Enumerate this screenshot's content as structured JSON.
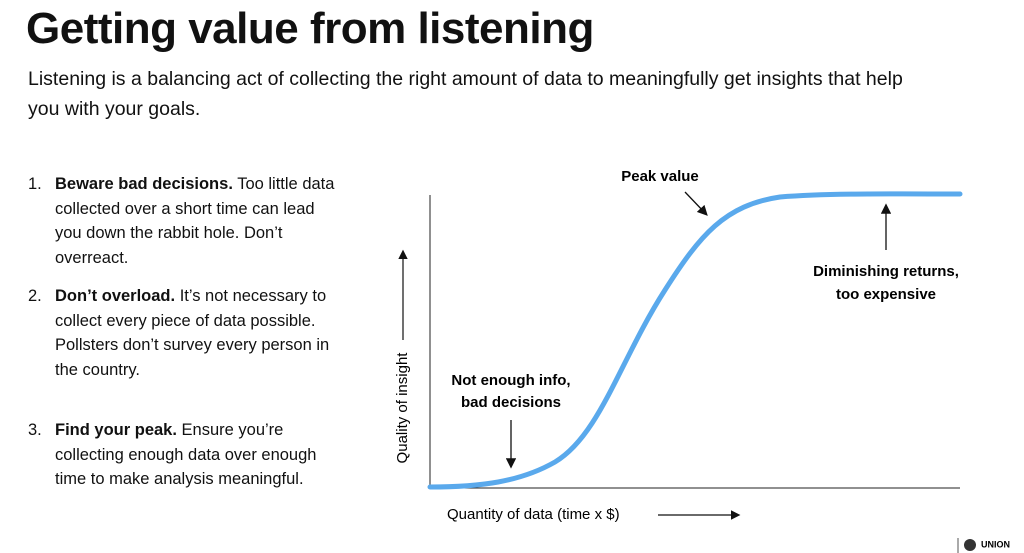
{
  "header": {
    "title": "Getting value from listening",
    "subtitle": "Listening is a balancing act of collecting the right amount of data to meaningfully get insights that help you with your goals."
  },
  "list": [
    {
      "number": "1.",
      "heading": "Beware bad decisions.",
      "text": "Too little data collected over a short time can lead you down the rabbit hole. Don’t overreact."
    },
    {
      "number": "2.",
      "heading": "Don’t overload.",
      "text": "It’s not necessary to collect every piece of data possible. Pollsters don’t survey every person in the country."
    },
    {
      "number": "3.",
      "heading": "Find your peak.",
      "text": "Ensure you’re collecting enough data over enough time to make analysis meaningful."
    }
  ],
  "diagram": {
    "y_label": "Quality of insight",
    "x_label": "Quantity of data (time x $)",
    "annotations": {
      "peak": "Peak value",
      "diminishing": [
        "Diminishing returns,",
        "too expensive"
      ],
      "not_enough": [
        "Not enough info,",
        "bad decisions"
      ]
    }
  },
  "logo": "UNION"
}
